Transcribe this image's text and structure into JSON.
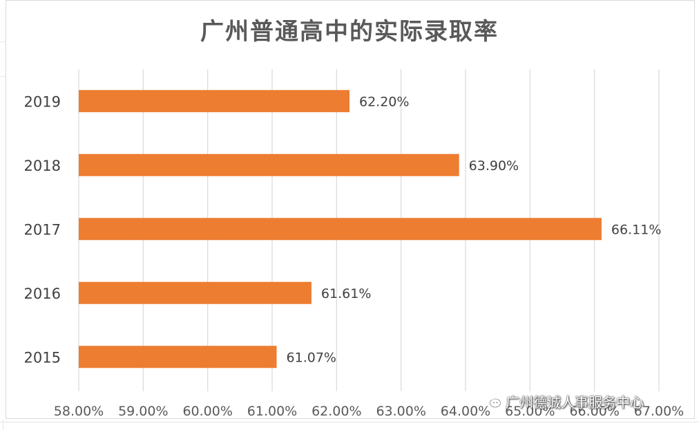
{
  "chart_data": {
    "type": "bar",
    "orientation": "horizontal",
    "title": "广州普通高中的实际录取率",
    "categories": [
      "2019",
      "2018",
      "2017",
      "2016",
      "2015"
    ],
    "values": [
      62.2,
      63.9,
      66.11,
      61.61,
      61.07
    ],
    "data_labels": [
      "62.20%",
      "63.90%",
      "66.11%",
      "61.61%",
      "61.07%"
    ],
    "xlim": [
      58,
      67
    ],
    "x_ticks": [
      58,
      59,
      60,
      61,
      62,
      63,
      64,
      65,
      66,
      67
    ],
    "x_tick_labels": [
      "58.00%",
      "59.00%",
      "60.00%",
      "61.00%",
      "62.00%",
      "63.00%",
      "64.00%",
      "65.00%",
      "66.00%",
      "67.00%"
    ],
    "grid": "vertical",
    "legend": "none",
    "bar_color": "#ED7D31"
  },
  "watermark": {
    "text": "广州德诚人事服务中心",
    "icon": "wechat-icon"
  }
}
